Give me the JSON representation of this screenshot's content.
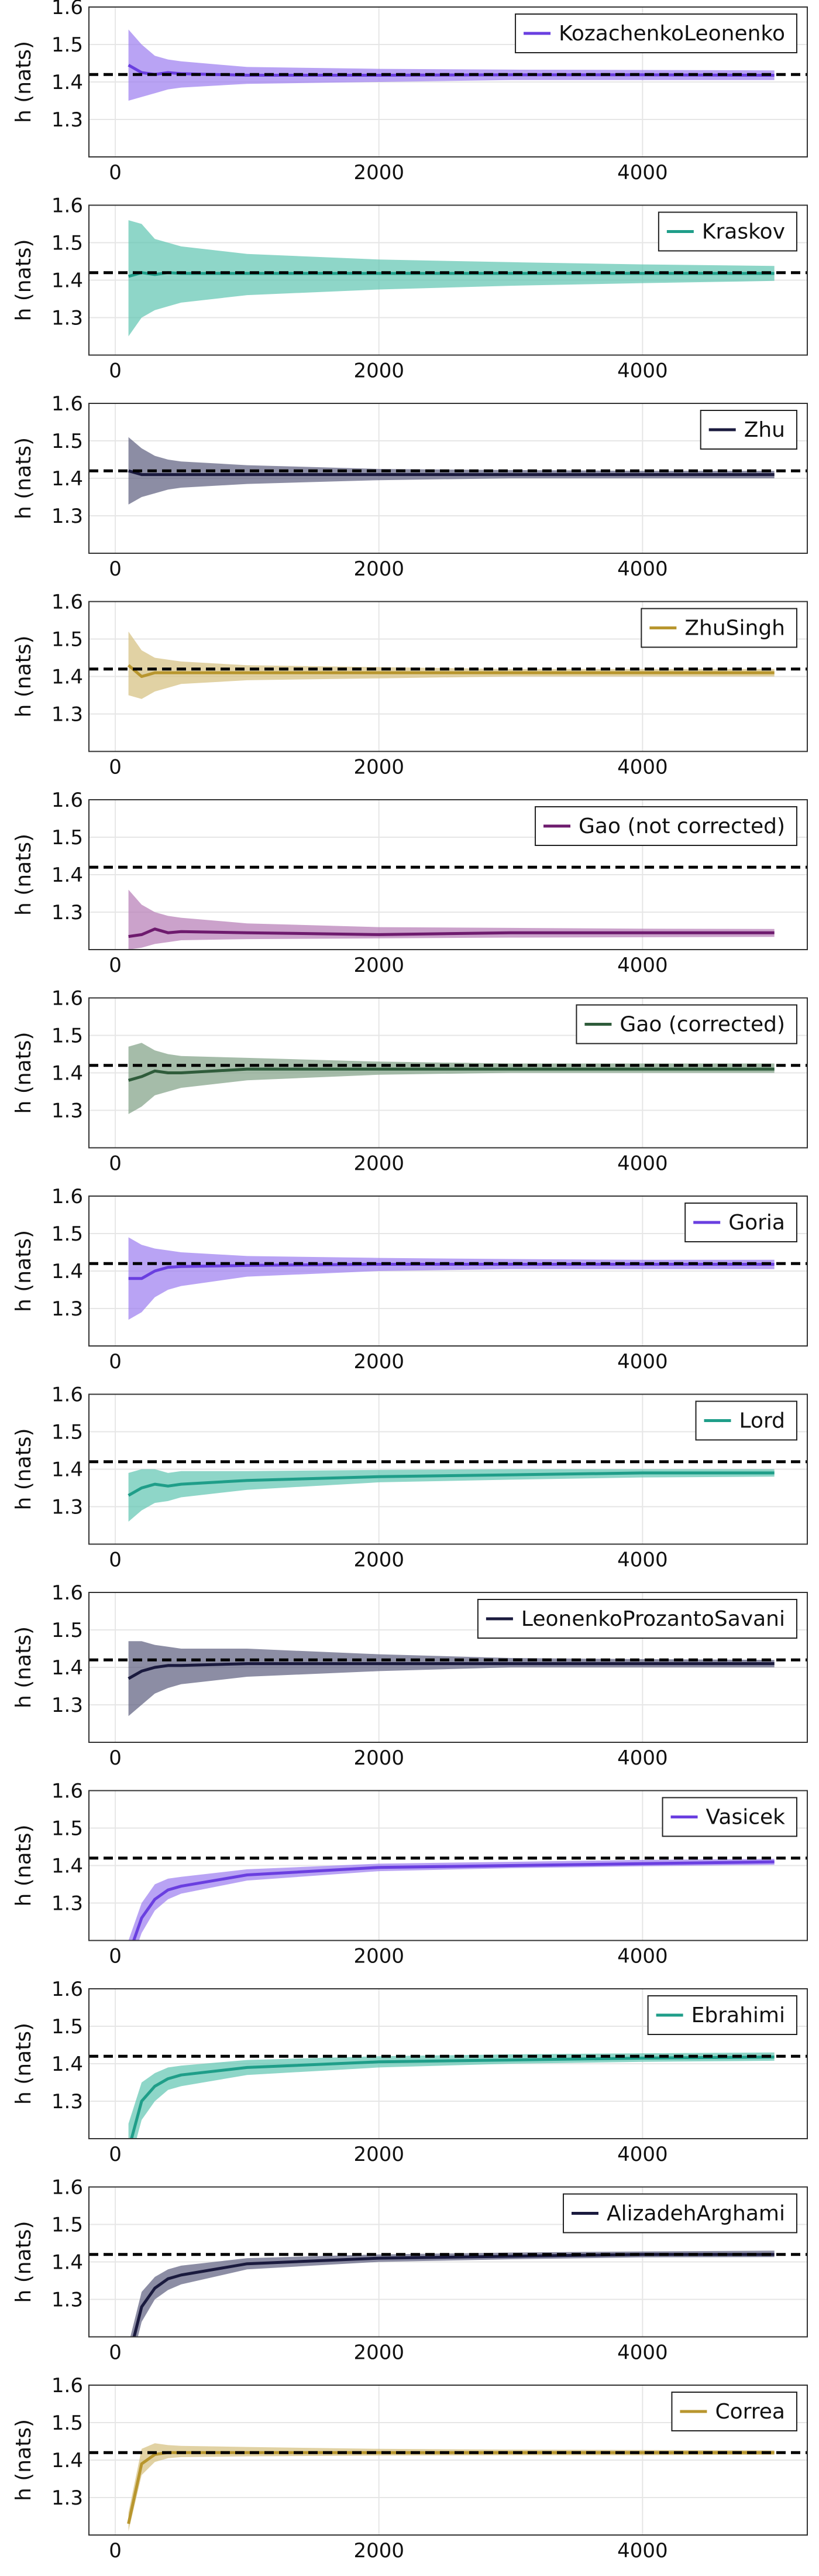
{
  "figure": {
    "ylabel": "h (nats)",
    "reference_value": 1.42
  },
  "chart_data": [
    {
      "type": "line",
      "series_name": "KozachenkoLeonenko",
      "color": "#6a3fe0",
      "band_color": "#9b7cf0",
      "xlim": [
        -200,
        5250
      ],
      "ylim": [
        1.2,
        1.6
      ],
      "xticks": [
        0,
        2000,
        4000
      ],
      "yticks": [
        1.3,
        1.4,
        1.5,
        1.6
      ],
      "x": [
        100,
        200,
        300,
        400,
        500,
        1000,
        2000,
        3000,
        4000,
        5000
      ],
      "mean": [
        1.445,
        1.425,
        1.42,
        1.425,
        1.422,
        1.418,
        1.418,
        1.419,
        1.419,
        1.418
      ],
      "lower": [
        1.35,
        1.36,
        1.37,
        1.38,
        1.385,
        1.395,
        1.4,
        1.405,
        1.405,
        1.405
      ],
      "upper": [
        1.54,
        1.5,
        1.47,
        1.46,
        1.455,
        1.44,
        1.435,
        1.433,
        1.432,
        1.431
      ]
    },
    {
      "type": "line",
      "series_name": "Kraskov",
      "color": "#1f9e89",
      "band_color": "#5ec4b0",
      "xlim": [
        -200,
        5250
      ],
      "ylim": [
        1.2,
        1.6
      ],
      "xticks": [
        0,
        2000,
        4000
      ],
      "yticks": [
        1.3,
        1.4,
        1.5,
        1.6
      ],
      "x": [
        100,
        200,
        300,
        400,
        500,
        1000,
        2000,
        3000,
        4000,
        5000
      ],
      "mean": [
        1.41,
        1.42,
        1.415,
        1.42,
        1.418,
        1.418,
        1.418,
        1.418,
        1.418,
        1.418
      ],
      "lower": [
        1.25,
        1.3,
        1.32,
        1.33,
        1.34,
        1.36,
        1.375,
        1.385,
        1.392,
        1.398
      ],
      "upper": [
        1.56,
        1.55,
        1.51,
        1.5,
        1.49,
        1.47,
        1.455,
        1.448,
        1.442,
        1.438
      ]
    },
    {
      "type": "line",
      "series_name": "Zhu",
      "color": "#1a1a3e",
      "band_color": "#5b5c7d",
      "xlim": [
        -200,
        5250
      ],
      "ylim": [
        1.2,
        1.6
      ],
      "xticks": [
        0,
        2000,
        4000
      ],
      "yticks": [
        1.3,
        1.4,
        1.5,
        1.6
      ],
      "x": [
        100,
        200,
        300,
        400,
        500,
        1000,
        2000,
        3000,
        4000,
        5000
      ],
      "mean": [
        1.42,
        1.41,
        1.41,
        1.41,
        1.41,
        1.41,
        1.41,
        1.41,
        1.41,
        1.41
      ],
      "lower": [
        1.33,
        1.35,
        1.36,
        1.37,
        1.375,
        1.385,
        1.395,
        1.4,
        1.4,
        1.4
      ],
      "upper": [
        1.51,
        1.48,
        1.46,
        1.45,
        1.445,
        1.435,
        1.425,
        1.422,
        1.42,
        1.42
      ]
    },
    {
      "type": "line",
      "series_name": "ZhuSingh",
      "color": "#b8962e",
      "band_color": "#d4bf7e",
      "xlim": [
        -200,
        5250
      ],
      "ylim": [
        1.2,
        1.6
      ],
      "xticks": [
        0,
        2000,
        4000
      ],
      "yticks": [
        1.3,
        1.4,
        1.5,
        1.6
      ],
      "x": [
        100,
        200,
        300,
        400,
        500,
        1000,
        2000,
        3000,
        4000,
        5000
      ],
      "mean": [
        1.43,
        1.4,
        1.41,
        1.41,
        1.41,
        1.41,
        1.41,
        1.41,
        1.41,
        1.41
      ],
      "lower": [
        1.35,
        1.34,
        1.36,
        1.37,
        1.38,
        1.39,
        1.395,
        1.4,
        1.4,
        1.4
      ],
      "upper": [
        1.52,
        1.47,
        1.45,
        1.445,
        1.44,
        1.43,
        1.425,
        1.42,
        1.42,
        1.42
      ]
    },
    {
      "type": "line",
      "series_name": "Gao (not corrected)",
      "color": "#6e1b6e",
      "band_color": "#b57ab5",
      "xlim": [
        -200,
        5250
      ],
      "ylim": [
        1.2,
        1.6
      ],
      "xticks": [
        0,
        2000,
        4000
      ],
      "yticks": [
        1.3,
        1.4,
        1.5,
        1.6
      ],
      "x": [
        100,
        200,
        300,
        400,
        500,
        1000,
        2000,
        3000,
        4000,
        5000
      ],
      "mean": [
        1.235,
        1.24,
        1.255,
        1.245,
        1.248,
        1.245,
        1.24,
        1.245,
        1.245,
        1.245
      ],
      "lower": [
        1.2,
        1.205,
        1.215,
        1.22,
        1.225,
        1.228,
        1.23,
        1.232,
        1.233,
        1.234
      ],
      "upper": [
        1.36,
        1.32,
        1.3,
        1.29,
        1.285,
        1.27,
        1.26,
        1.258,
        1.256,
        1.255
      ]
    },
    {
      "type": "line",
      "series_name": "Gao (corrected)",
      "color": "#2f5c3b",
      "band_color": "#7f9f85",
      "xlim": [
        -200,
        5250
      ],
      "ylim": [
        1.2,
        1.6
      ],
      "xticks": [
        0,
        2000,
        4000
      ],
      "yticks": [
        1.3,
        1.4,
        1.5,
        1.6
      ],
      "x": [
        100,
        200,
        300,
        400,
        500,
        1000,
        2000,
        3000,
        4000,
        5000
      ],
      "mean": [
        1.38,
        1.39,
        1.405,
        1.4,
        1.4,
        1.41,
        1.41,
        1.41,
        1.41,
        1.41
      ],
      "lower": [
        1.29,
        1.31,
        1.34,
        1.35,
        1.36,
        1.38,
        1.395,
        1.4,
        1.4,
        1.4
      ],
      "upper": [
        1.47,
        1.48,
        1.46,
        1.45,
        1.445,
        1.44,
        1.43,
        1.425,
        1.425,
        1.425
      ]
    },
    {
      "type": "line",
      "series_name": "Goria",
      "color": "#6a3fe0",
      "band_color": "#9b7cf0",
      "xlim": [
        -200,
        5250
      ],
      "ylim": [
        1.2,
        1.6
      ],
      "xticks": [
        0,
        2000,
        4000
      ],
      "yticks": [
        1.3,
        1.4,
        1.5,
        1.6
      ],
      "x": [
        100,
        200,
        300,
        400,
        500,
        1000,
        2000,
        3000,
        4000,
        5000
      ],
      "mean": [
        1.38,
        1.38,
        1.4,
        1.41,
        1.412,
        1.415,
        1.418,
        1.418,
        1.418,
        1.418
      ],
      "lower": [
        1.27,
        1.29,
        1.33,
        1.35,
        1.36,
        1.385,
        1.4,
        1.405,
        1.405,
        1.405
      ],
      "upper": [
        1.49,
        1.47,
        1.46,
        1.455,
        1.45,
        1.44,
        1.435,
        1.432,
        1.43,
        1.43
      ]
    },
    {
      "type": "line",
      "series_name": "Lord",
      "color": "#1f9e89",
      "band_color": "#5ec4b0",
      "xlim": [
        -200,
        5250
      ],
      "ylim": [
        1.2,
        1.6
      ],
      "xticks": [
        0,
        2000,
        4000
      ],
      "yticks": [
        1.3,
        1.4,
        1.5,
        1.6
      ],
      "x": [
        100,
        200,
        300,
        400,
        500,
        1000,
        2000,
        3000,
        4000,
        5000
      ],
      "mean": [
        1.33,
        1.35,
        1.36,
        1.355,
        1.36,
        1.37,
        1.38,
        1.385,
        1.39,
        1.39
      ],
      "lower": [
        1.26,
        1.29,
        1.31,
        1.315,
        1.325,
        1.345,
        1.365,
        1.372,
        1.378,
        1.38
      ],
      "upper": [
        1.39,
        1.4,
        1.4,
        1.39,
        1.395,
        1.395,
        1.398,
        1.4,
        1.4,
        1.4
      ]
    },
    {
      "type": "line",
      "series_name": "LeonenkoProzantoSavani",
      "color": "#1a1a3e",
      "band_color": "#5b5c7d",
      "xlim": [
        -200,
        5250
      ],
      "ylim": [
        1.2,
        1.6
      ],
      "xticks": [
        0,
        2000,
        4000
      ],
      "yticks": [
        1.3,
        1.4,
        1.5,
        1.6
      ],
      "x": [
        100,
        200,
        300,
        400,
        500,
        1000,
        2000,
        3000,
        4000,
        5000
      ],
      "mean": [
        1.37,
        1.39,
        1.4,
        1.405,
        1.405,
        1.41,
        1.41,
        1.41,
        1.41,
        1.41
      ],
      "lower": [
        1.27,
        1.3,
        1.33,
        1.345,
        1.355,
        1.375,
        1.39,
        1.4,
        1.4,
        1.4
      ],
      "upper": [
        1.47,
        1.47,
        1.46,
        1.455,
        1.45,
        1.45,
        1.435,
        1.425,
        1.422,
        1.42
      ]
    },
    {
      "type": "line",
      "series_name": "Vasicek",
      "color": "#6a3fe0",
      "band_color": "#9b7cf0",
      "xlim": [
        -200,
        5250
      ],
      "ylim": [
        1.2,
        1.6
      ],
      "xticks": [
        0,
        2000,
        4000
      ],
      "yticks": [
        1.3,
        1.4,
        1.5,
        1.6
      ],
      "x": [
        100,
        200,
        300,
        400,
        500,
        1000,
        2000,
        3000,
        4000,
        5000
      ],
      "mean": [
        1.16,
        1.26,
        1.31,
        1.335,
        1.345,
        1.375,
        1.395,
        1.4,
        1.405,
        1.41
      ],
      "lower": [
        1.12,
        1.22,
        1.28,
        1.31,
        1.325,
        1.36,
        1.385,
        1.393,
        1.398,
        1.402
      ],
      "upper": [
        1.2,
        1.3,
        1.35,
        1.365,
        1.37,
        1.39,
        1.405,
        1.41,
        1.415,
        1.418
      ]
    },
    {
      "type": "line",
      "series_name": "Ebrahimi",
      "color": "#1f9e89",
      "band_color": "#5ec4b0",
      "xlim": [
        -200,
        5250
      ],
      "ylim": [
        1.2,
        1.6
      ],
      "xticks": [
        0,
        2000,
        4000
      ],
      "yticks": [
        1.3,
        1.4,
        1.5,
        1.6
      ],
      "x": [
        100,
        200,
        300,
        400,
        500,
        1000,
        2000,
        3000,
        4000,
        5000
      ],
      "mean": [
        1.17,
        1.3,
        1.34,
        1.36,
        1.37,
        1.39,
        1.405,
        1.41,
        1.415,
        1.418
      ],
      "lower": [
        1.12,
        1.25,
        1.3,
        1.33,
        1.34,
        1.37,
        1.39,
        1.4,
        1.405,
        1.408
      ],
      "upper": [
        1.24,
        1.35,
        1.375,
        1.39,
        1.395,
        1.41,
        1.42,
        1.425,
        1.428,
        1.43
      ]
    },
    {
      "type": "line",
      "series_name": "AlizadehArghami",
      "color": "#1a1a3e",
      "band_color": "#5b5c7d",
      "xlim": [
        -200,
        5250
      ],
      "ylim": [
        1.2,
        1.6
      ],
      "xticks": [
        0,
        2000,
        4000
      ],
      "yticks": [
        1.3,
        1.4,
        1.5,
        1.6
      ],
      "x": [
        100,
        200,
        300,
        400,
        500,
        1000,
        2000,
        3000,
        4000,
        5000
      ],
      "mean": [
        1.14,
        1.28,
        1.33,
        1.355,
        1.365,
        1.395,
        1.41,
        1.415,
        1.42,
        1.42
      ],
      "lower": [
        1.1,
        1.24,
        1.3,
        1.325,
        1.34,
        1.38,
        1.4,
        1.407,
        1.412,
        1.413
      ],
      "upper": [
        1.18,
        1.32,
        1.36,
        1.38,
        1.39,
        1.41,
        1.42,
        1.425,
        1.428,
        1.43
      ]
    },
    {
      "type": "line",
      "series_name": "Correa",
      "color": "#b8962e",
      "band_color": "#d4bf7e",
      "xlim": [
        -200,
        5250
      ],
      "ylim": [
        1.2,
        1.6
      ],
      "xticks": [
        0,
        2000,
        4000
      ],
      "yticks": [
        1.3,
        1.4,
        1.5,
        1.6
      ],
      "x": [
        100,
        200,
        300,
        400,
        500,
        1000,
        2000,
        3000,
        4000,
        5000
      ],
      "mean": [
        1.23,
        1.39,
        1.415,
        1.42,
        1.42,
        1.42,
        1.42,
        1.42,
        1.42,
        1.42
      ],
      "lower": [
        1.21,
        1.36,
        1.395,
        1.405,
        1.408,
        1.41,
        1.412,
        1.413,
        1.413,
        1.414
      ],
      "upper": [
        1.26,
        1.43,
        1.445,
        1.44,
        1.438,
        1.435,
        1.43,
        1.428,
        1.427,
        1.426
      ]
    }
  ]
}
